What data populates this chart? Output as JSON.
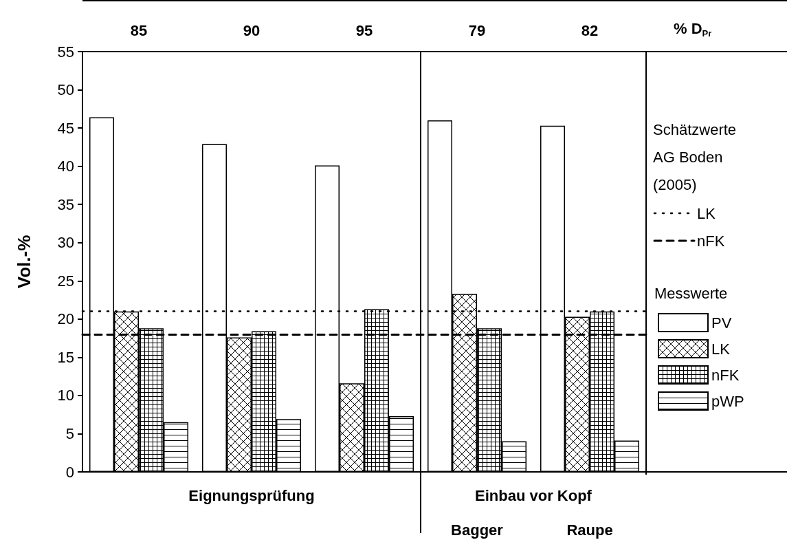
{
  "chart_data": {
    "type": "bar",
    "categories": [
      "85",
      "90",
      "95",
      "79",
      "82"
    ],
    "xlabel": "% D$_{Pr}$",
    "ylabel": "Vol.-%",
    "legend_title": "Messwerte",
    "series": [
      {
        "name": "PV",
        "color": "#ffffff",
        "values": [
          46.4,
          42.9,
          40.1,
          46.0,
          45.3
        ]
      },
      {
        "name": "LK",
        "color": "#000000",
        "values": [
          21.0,
          17.6,
          11.6,
          23.3,
          20.3
        ]
      },
      {
        "name": "nFK",
        "color": "#000000",
        "values": [
          18.8,
          18.4,
          21.3,
          18.8,
          21.0
        ]
      },
      {
        "name": "pWP",
        "color": "#000000",
        "values": [
          6.5,
          6.9,
          7.3,
          4.0,
          4.1
        ]
      }
    ],
    "ylim": [
      0,
      55
    ],
    "yticks": [
      0,
      5,
      10,
      15,
      20,
      25,
      30,
      35,
      40,
      45,
      50,
      55
    ],
    "ref_lines": [
      {
        "axis": "y",
        "value": 21,
        "label": "LK",
        "color": "#000000",
        "line_style": "dotted"
      },
      {
        "axis": "y",
        "value": 18,
        "label": "nFK",
        "color": "#000000",
        "line_style": "dashed"
      }
    ],
    "annotations": [
      "Eignungsprüfung",
      "Einbau vor Kopf",
      "Bagger",
      "Raupe",
      "Schätzwerte AG Boden (2005)"
    ],
    "legend": "right",
    "grid": false
  }
}
